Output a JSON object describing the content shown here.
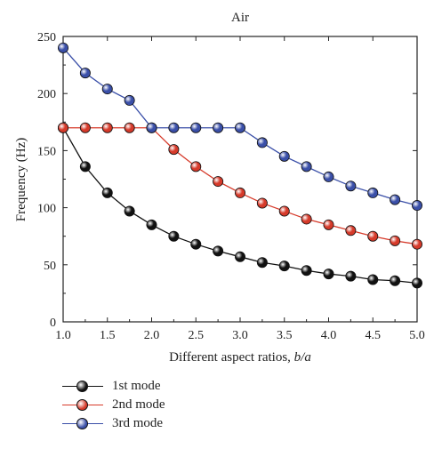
{
  "chart_data": {
    "type": "line",
    "title": "Air",
    "xlabel_prefix": "Different aspect ratios, ",
    "xlabel_italic": "b/a",
    "ylabel": "Frequency (Hz)",
    "xlim": [
      1.0,
      5.0
    ],
    "ylim": [
      0,
      250
    ],
    "xticks": [
      "1.0",
      "1.5",
      "2.0",
      "2.5",
      "3.0",
      "3.5",
      "4.0",
      "4.5",
      "5.0"
    ],
    "yticks": [
      "0",
      "50",
      "100",
      "150",
      "200",
      "250"
    ],
    "x": [
      1.0,
      1.25,
      1.5,
      1.75,
      2.0,
      2.25,
      2.5,
      2.75,
      3.0,
      3.25,
      3.5,
      3.75,
      4.0,
      4.25,
      4.5,
      4.75,
      5.0
    ],
    "series": [
      {
        "name": "1st mode",
        "color": "#111111",
        "values": [
          170,
          136,
          113,
          97,
          85,
          75,
          68,
          62,
          57,
          52,
          49,
          45,
          42,
          40,
          37,
          36,
          34
        ]
      },
      {
        "name": "2nd mode",
        "color": "#d63a2a",
        "values": [
          170,
          170,
          170,
          170,
          170,
          151,
          136,
          123,
          113,
          104,
          97,
          90,
          85,
          80,
          75,
          71,
          68
        ]
      },
      {
        "name": "3rd mode",
        "color": "#3a4fa8",
        "values": [
          240,
          218,
          204,
          194,
          170,
          170,
          170,
          170,
          170,
          157,
          145,
          136,
          127,
          119,
          113,
          107,
          102
        ]
      }
    ],
    "grid": false,
    "legend_position": "bottom-left"
  }
}
